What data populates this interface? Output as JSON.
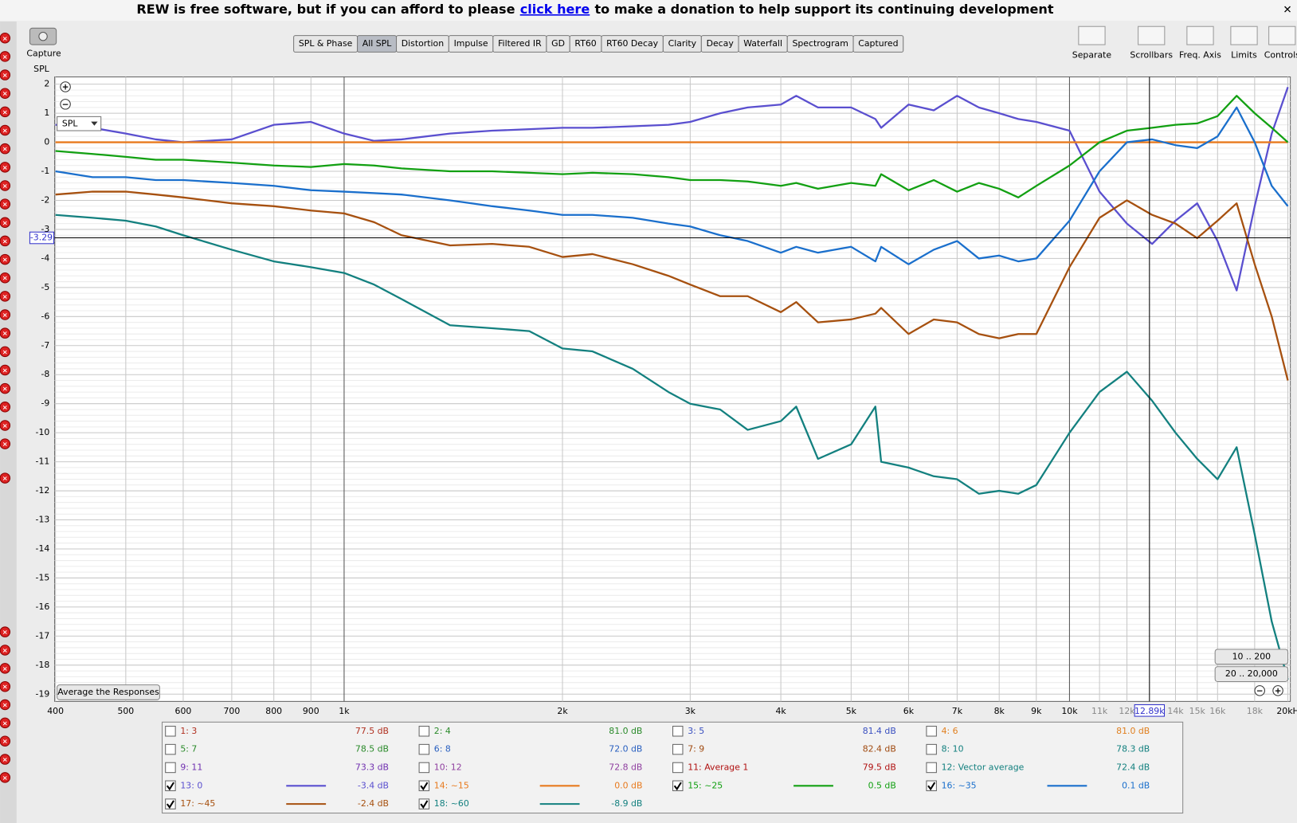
{
  "banner": {
    "before": "REW is free software, but if you can afford to please",
    "link": "click here",
    "after": "to make a donation to help support its continuing development"
  },
  "toolbar": {
    "capture": "Capture",
    "tabs": [
      "SPL & Phase",
      "All SPL",
      "Distortion",
      "Impulse",
      "Filtered IR",
      "GD",
      "RT60",
      "RT60 Decay",
      "Clarity",
      "Decay",
      "Waterfall",
      "Spectrogram",
      "Captured"
    ],
    "selected_tab": 1,
    "right_buttons": [
      "Separate",
      "Scrollbars",
      "Freq. Axis",
      "Limits",
      "Controls"
    ]
  },
  "chart_data": {
    "type": "line",
    "ylabel": "SPL",
    "selector": "SPL",
    "xscale": "log",
    "grid": true,
    "xlim": [
      400,
      20000
    ],
    "ylim": [
      -19.25,
      2.25
    ],
    "xticks": [
      400,
      500,
      600,
      700,
      800,
      900,
      {
        "value": 1000,
        "label": "1k"
      },
      {
        "value": 2000,
        "label": "2k"
      },
      {
        "value": 3000,
        "label": "3k"
      },
      {
        "value": 4000,
        "label": "4k"
      },
      {
        "value": 5000,
        "label": "5k"
      },
      {
        "value": 6000,
        "label": "6k"
      },
      {
        "value": 7000,
        "label": "7k"
      },
      {
        "value": 8000,
        "label": "8k"
      },
      {
        "value": 9000,
        "label": "9k"
      },
      {
        "value": 10000,
        "label": "10k"
      },
      {
        "value": 20000,
        "label": "20kH"
      }
    ],
    "xticks_minor": [
      {
        "value": 11000,
        "label": "11k"
      },
      {
        "value": 12000,
        "label": "12k"
      },
      {
        "value": 14000,
        "label": "14k"
      },
      {
        "value": 15000,
        "label": "15k"
      },
      {
        "value": 16000,
        "label": "16k"
      },
      {
        "value": 18000,
        "label": "18k"
      }
    ],
    "yticks": [
      -19,
      -18,
      -17,
      -16,
      -15,
      -14,
      -13,
      -12,
      -11,
      -10,
      -9,
      -8,
      -7,
      -6,
      -5,
      -4,
      -3,
      -2,
      -1,
      0,
      1,
      2
    ],
    "cursor": {
      "x": {
        "value": 12890,
        "label": "12.89k"
      },
      "y": -3.29
    },
    "x": [
      400,
      450,
      500,
      550,
      600,
      700,
      800,
      900,
      1000,
      1100,
      1200,
      1400,
      1600,
      1800,
      2000,
      2200,
      2500,
      2800,
      3000,
      3300,
      3600,
      4000,
      4200,
      4500,
      5000,
      5400,
      5500,
      6000,
      6500,
      7000,
      7500,
      8000,
      8500,
      9000,
      10000,
      11000,
      12000,
      13000,
      14000,
      15000,
      16000,
      17000,
      18000,
      19000,
      20000
    ],
    "series": [
      {
        "name": "13: 0",
        "color": "#5a4fcf",
        "level": "-3.4 dB",
        "values": [
          0.6,
          0.5,
          0.3,
          0.1,
          0,
          0.1,
          0.6,
          0.7,
          0.3,
          0.05,
          0.1,
          0.3,
          0.4,
          0.45,
          0.5,
          0.5,
          0.55,
          0.6,
          0.7,
          1.0,
          1.2,
          1.3,
          1.6,
          1.2,
          1.2,
          0.8,
          0.5,
          1.3,
          1.1,
          1.6,
          1.2,
          1.0,
          0.8,
          0.7,
          0.4,
          -1.7,
          -2.8,
          -3.5,
          -2.7,
          -2.1,
          -3.4,
          -5.1,
          -2.2,
          0.3,
          1.9
        ]
      },
      {
        "name": "14: ~15",
        "color": "#e87a1e",
        "level": "0.0 dB",
        "values": [
          0,
          0,
          0,
          0,
          0,
          0,
          0,
          0,
          0,
          0,
          0,
          0,
          0,
          0,
          0,
          0,
          0,
          0,
          0,
          0,
          0,
          0,
          0,
          0,
          0,
          0,
          0,
          0,
          0,
          0,
          0,
          0,
          0,
          0,
          0,
          0,
          0,
          0,
          0,
          0,
          0,
          0,
          0,
          0,
          0
        ]
      },
      {
        "name": "15: ~25",
        "color": "#12a012",
        "level": "0.5 dB",
        "values": [
          -0.3,
          -0.4,
          -0.5,
          -0.6,
          -0.6,
          -0.7,
          -0.8,
          -0.85,
          -0.75,
          -0.8,
          -0.9,
          -1.0,
          -1.0,
          -1.05,
          -1.1,
          -1.05,
          -1.1,
          -1.2,
          -1.3,
          -1.3,
          -1.35,
          -1.5,
          -1.4,
          -1.6,
          -1.4,
          -1.5,
          -1.1,
          -1.65,
          -1.3,
          -1.7,
          -1.4,
          -1.6,
          -1.9,
          -1.5,
          -0.8,
          0,
          0.4,
          0.5,
          0.6,
          0.65,
          0.9,
          1.6,
          1.0,
          0.5,
          0
        ]
      },
      {
        "name": "16: ~35",
        "color": "#1a6fcc",
        "level": "0.1 dB",
        "values": [
          -1.0,
          -1.2,
          -1.2,
          -1.3,
          -1.3,
          -1.4,
          -1.5,
          -1.65,
          -1.7,
          -1.75,
          -1.8,
          -2.0,
          -2.2,
          -2.35,
          -2.5,
          -2.5,
          -2.6,
          -2.8,
          -2.9,
          -3.2,
          -3.4,
          -3.8,
          -3.6,
          -3.8,
          -3.6,
          -4.1,
          -3.6,
          -4.2,
          -3.7,
          -3.4,
          -4.0,
          -3.9,
          -4.1,
          -4.0,
          -2.7,
          -1.0,
          0,
          0.1,
          -0.1,
          -0.2,
          0.2,
          1.2,
          0,
          -1.5,
          -2.2
        ]
      },
      {
        "name": "17: ~45",
        "color": "#a6500f",
        "level": "-2.4 dB",
        "values": [
          -1.8,
          -1.7,
          -1.7,
          -1.8,
          -1.9,
          -2.1,
          -2.2,
          -2.35,
          -2.45,
          -2.75,
          -3.2,
          -3.55,
          -3.5,
          -3.6,
          -3.95,
          -3.85,
          -4.2,
          -4.6,
          -4.9,
          -5.3,
          -5.3,
          -5.85,
          -5.5,
          -6.2,
          -6.1,
          -5.9,
          -5.7,
          -6.6,
          -6.1,
          -6.2,
          -6.6,
          -6.75,
          -6.6,
          -6.6,
          -4.3,
          -2.6,
          -2.0,
          -2.5,
          -2.8,
          -3.3,
          -2.7,
          -2.1,
          -4.2,
          -6.0,
          -8.2
        ]
      },
      {
        "name": "18: ~60",
        "color": "#13807f",
        "level": "-8.9 dB",
        "values": [
          -2.5,
          -2.6,
          -2.7,
          -2.9,
          -3.2,
          -3.7,
          -4.1,
          -4.3,
          -4.5,
          -4.9,
          -5.4,
          -6.3,
          -6.4,
          -6.5,
          -7.1,
          -7.2,
          -7.8,
          -8.6,
          -9.0,
          -9.2,
          -9.9,
          -9.6,
          -9.1,
          -10.9,
          -10.4,
          -9.1,
          -11.0,
          -11.2,
          -11.5,
          -11.6,
          -12.1,
          -12.0,
          -12.1,
          -11.8,
          -10.0,
          -8.6,
          -7.9,
          -8.9,
          -10.0,
          -10.9,
          -11.6,
          -10.5,
          -13.5,
          -16.5,
          -18.5
        ]
      }
    ]
  },
  "buttons": {
    "average": "Average the Responses",
    "range_low": "10 .. 200",
    "range_full": "20 .. 20,000"
  },
  "measurements": [
    {
      "label": "1: 3",
      "value": "77.5 dB",
      "color": "#b03020",
      "checked": false
    },
    {
      "label": "2: 4",
      "value": "81.0 dB",
      "color": "#2a8a2a",
      "checked": false
    },
    {
      "label": "3: 5",
      "value": "81.4 dB",
      "color": "#3a50c0",
      "checked": false
    },
    {
      "label": "4: 6",
      "value": "81.0 dB",
      "color": "#e08020",
      "checked": false
    },
    {
      "label": "5: 7",
      "value": "78.5 dB",
      "color": "#2a8a2a",
      "checked": false
    },
    {
      "label": "6: 8",
      "value": "72.0 dB",
      "color": "#2a60c0",
      "checked": false
    },
    {
      "label": "7: 9",
      "value": "82.4 dB",
      "color": "#a04a10",
      "checked": false
    },
    {
      "label": "8: 10",
      "value": "78.3 dB",
      "color": "#13807f",
      "checked": false
    },
    {
      "label": "9: 11",
      "value": "73.3 dB",
      "color": "#7030b0",
      "checked": false
    },
    {
      "label": "10: 12",
      "value": "72.8 dB",
      "color": "#9040a0",
      "checked": false
    },
    {
      "label": "11: Average 1",
      "value": "79.5 dB",
      "color": "#b01010",
      "checked": false
    },
    {
      "label": "12: Vector average",
      "value": "72.4 dB",
      "color": "#13807f",
      "checked": false
    }
  ]
}
